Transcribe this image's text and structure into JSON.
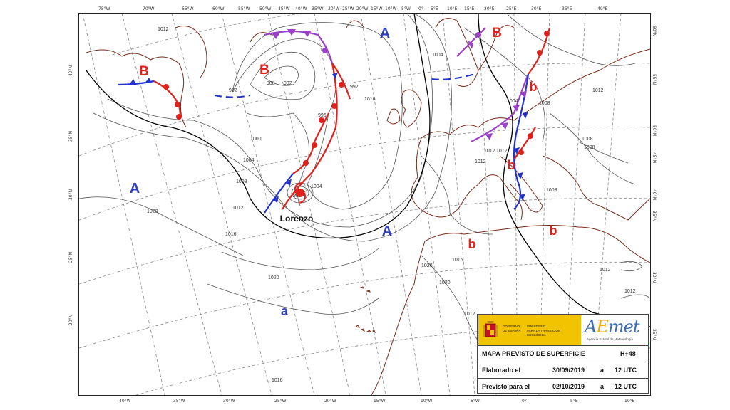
{
  "map": {
    "pressure_systems": [
      {
        "id": "high-north",
        "label": "A",
        "type": "high",
        "color": "#2e3fc4"
      },
      {
        "id": "high-west",
        "label": "A",
        "type": "high",
        "color": "#2e3fc4"
      },
      {
        "id": "high-center",
        "label": "A",
        "type": "high",
        "color": "#2e3fc4"
      },
      {
        "id": "high-weak-south",
        "label": "a",
        "type": "high-weak",
        "color": "#2e3fc4"
      },
      {
        "id": "low-greenland",
        "label": "B",
        "type": "low",
        "color": "#e0201b"
      },
      {
        "id": "low-atlantic",
        "label": "B",
        "type": "low",
        "color": "#e0201b"
      },
      {
        "id": "low-scandinavia",
        "label": "B",
        "type": "low",
        "color": "#e0201b"
      },
      {
        "id": "low-weak-balkans",
        "label": "b",
        "type": "low-weak",
        "color": "#e0201b"
      },
      {
        "id": "low-weak-italy",
        "label": "b",
        "type": "low-weak",
        "color": "#e0201b"
      },
      {
        "id": "low-weak-africa",
        "label": "b",
        "type": "low-weak",
        "color": "#e0201b"
      },
      {
        "id": "low-weak-east",
        "label": "b",
        "type": "low-weak",
        "color": "#e0201b"
      }
    ],
    "storm_name": "Lorenzo",
    "isobar_labels": [
      "1012",
      "1012",
      "1012",
      "1012",
      "1016",
      "1016",
      "1020",
      "1020",
      "1020",
      "1020",
      "1016",
      "1012",
      "1012",
      "1012",
      "1012",
      "1008",
      "1008",
      "1008",
      "1004",
      "1000",
      "1004",
      "1008",
      "1008",
      "992",
      "988",
      "992",
      "996",
      "1004",
      "1004",
      "1012",
      "992",
      "988",
      "1016"
    ],
    "lon_labels_top": [
      "75°W",
      "70°W",
      "65°W",
      "60°W",
      "55°W",
      "50°W",
      "45°W",
      "40°W",
      "35°W",
      "30°W",
      "25°W",
      "20°W",
      "15°W",
      "10°W",
      "5°W",
      "0°",
      "5°E",
      "10°E",
      "15°E",
      "20°E",
      "25°E",
      "30°E",
      "35°E",
      "40°E"
    ],
    "lon_labels_bottom": [
      "40°W",
      "35°W",
      "30°W",
      "25°W",
      "20°W",
      "15°W",
      "10°W",
      "5°W",
      "0°",
      "5°E",
      "10°E"
    ],
    "lat_labels_left": [
      "40°N",
      "35°N",
      "30°N",
      "25°N",
      "20°N"
    ],
    "lat_labels_right": [
      "60°N",
      "55°N",
      "50°N",
      "45°N",
      "40°N",
      "35°N",
      "30°N",
      "25°N"
    ],
    "front_colors": {
      "cold": "#2233cc",
      "warm": "#e0201b",
      "occluded": "#9b40c9"
    }
  },
  "info": {
    "gov_line1": "GOBIERNO",
    "gov_line2": "DE ESPAÑA",
    "ministry_line1": "MINISTERIO",
    "ministry_line2": "PARA LA TRANSICIÓN ECOLÓGICA",
    "agency_logo": "AEmet",
    "agency_sub": "Agencia Estatal de Meteorología",
    "title": "MAPA PREVISTO DE SUPERFICIE",
    "horizon": "H+48",
    "elaborado_label": "Elaborado el",
    "elaborado_date": "30/09/2019",
    "elaborado_a": "a",
    "elaborado_time": "12 UTC",
    "previsto_label": "Previsto para el",
    "previsto_date": "02/10/2019",
    "previsto_a": "a",
    "previsto_time": "12 UTC"
  }
}
